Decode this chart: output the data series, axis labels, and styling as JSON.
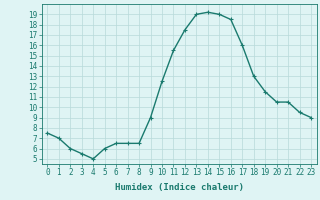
{
  "x": [
    0,
    1,
    2,
    3,
    4,
    5,
    6,
    7,
    8,
    9,
    10,
    11,
    12,
    13,
    14,
    15,
    16,
    17,
    18,
    19,
    20,
    21,
    22,
    23
  ],
  "y": [
    7.5,
    7.0,
    6.0,
    5.5,
    5.0,
    6.0,
    6.5,
    6.5,
    6.5,
    9.0,
    12.5,
    15.5,
    17.5,
    19.0,
    19.2,
    19.0,
    18.5,
    16.0,
    13.0,
    11.5,
    10.5,
    10.5,
    9.5,
    9.0
  ],
  "line_color": "#1a7a6e",
  "marker": "+",
  "marker_size": 3,
  "bg_color": "#dff4f4",
  "grid_color": "#b8dada",
  "xlabel": "Humidex (Indice chaleur)",
  "xlim": [
    -0.5,
    23.5
  ],
  "ylim": [
    4.5,
    20.0
  ],
  "xtick_labels": [
    "0",
    "1",
    "2",
    "3",
    "4",
    "5",
    "6",
    "7",
    "8",
    "9",
    "10",
    "11",
    "12",
    "13",
    "14",
    "15",
    "16",
    "17",
    "18",
    "19",
    "20",
    "21",
    "22",
    "23"
  ],
  "ytick_values": [
    5,
    6,
    7,
    8,
    9,
    10,
    11,
    12,
    13,
    14,
    15,
    16,
    17,
    18,
    19
  ],
  "xlabel_fontsize": 6.5,
  "tick_fontsize": 5.5,
  "line_width": 1.0
}
